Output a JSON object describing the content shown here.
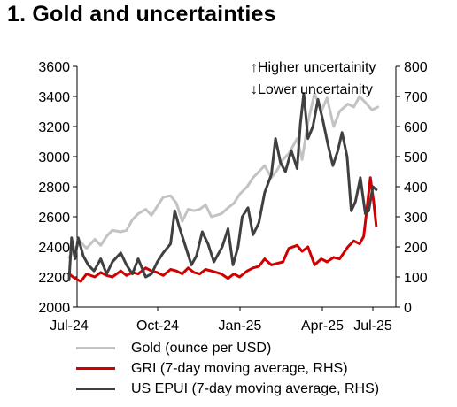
{
  "title": "1. Gold and uncertainties",
  "colors": {
    "gold": "#c3c3c3",
    "gri": "#d00000",
    "epui": "#404040"
  },
  "legend": [
    {
      "key": "gold",
      "label": "Gold (ounce per USD)"
    },
    {
      "key": "gri",
      "label": "GRI (7-day moving average, RHS)"
    },
    {
      "key": "epui",
      "label": "US EPUI (7-day moving average, RHS)"
    }
  ],
  "chart_data": {
    "type": "line",
    "annotations": [
      "↑Higher uncertainity",
      "↓Lower uncertainity"
    ],
    "x_ticks": [
      "Jul-24",
      "Oct-24",
      "Jan-25",
      "Apr-25",
      "Jul-25"
    ],
    "ylim_left": [
      2000,
      3600
    ],
    "yticks_left": [
      2000,
      2200,
      2400,
      2600,
      2800,
      3000,
      3200,
      3400,
      3600
    ],
    "ylim_right": [
      0,
      800
    ],
    "yticks_right": [
      0,
      100,
      200,
      300,
      400,
      500,
      600,
      700,
      800
    ],
    "grid": false,
    "legend_position": "bottom",
    "series": [
      {
        "name": "Gold (ounce per USD)",
        "key": "gold",
        "axis": "left",
        "points": [
          [
            "2024-07-01",
            2330
          ],
          [
            "2024-07-08",
            2390
          ],
          [
            "2024-07-15",
            2430
          ],
          [
            "2024-07-22",
            2390
          ],
          [
            "2024-08-01",
            2450
          ],
          [
            "2024-08-08",
            2410
          ],
          [
            "2024-08-15",
            2470
          ],
          [
            "2024-08-22",
            2510
          ],
          [
            "2024-09-01",
            2500
          ],
          [
            "2024-09-08",
            2510
          ],
          [
            "2024-09-15",
            2580
          ],
          [
            "2024-09-22",
            2620
          ],
          [
            "2024-10-01",
            2650
          ],
          [
            "2024-10-08",
            2610
          ],
          [
            "2024-10-15",
            2670
          ],
          [
            "2024-10-22",
            2730
          ],
          [
            "2024-10-31",
            2740
          ],
          [
            "2024-11-07",
            2690
          ],
          [
            "2024-11-14",
            2570
          ],
          [
            "2024-11-21",
            2650
          ],
          [
            "2024-11-28",
            2640
          ],
          [
            "2024-12-05",
            2650
          ],
          [
            "2024-12-12",
            2680
          ],
          [
            "2024-12-19",
            2600
          ],
          [
            "2024-12-31",
            2620
          ],
          [
            "2025-01-08",
            2660
          ],
          [
            "2025-01-15",
            2690
          ],
          [
            "2025-01-22",
            2750
          ],
          [
            "2025-01-31",
            2800
          ],
          [
            "2025-02-07",
            2860
          ],
          [
            "2025-02-14",
            2900
          ],
          [
            "2025-02-21",
            2940
          ],
          [
            "2025-03-01",
            2860
          ],
          [
            "2025-03-08",
            2910
          ],
          [
            "2025-03-15",
            2980
          ],
          [
            "2025-03-22",
            3020
          ],
          [
            "2025-04-01",
            3120
          ],
          [
            "2025-04-07",
            2980
          ],
          [
            "2025-04-14",
            3230
          ],
          [
            "2025-04-22",
            3420
          ],
          [
            "2025-04-30",
            3300
          ],
          [
            "2025-05-07",
            3390
          ],
          [
            "2025-05-15",
            3200
          ],
          [
            "2025-05-22",
            3300
          ],
          [
            "2025-06-01",
            3350
          ],
          [
            "2025-06-08",
            3330
          ],
          [
            "2025-06-15",
            3400
          ],
          [
            "2025-06-22",
            3360
          ],
          [
            "2025-06-30",
            3310
          ],
          [
            "2025-07-07",
            3330
          ]
        ]
      },
      {
        "name": "GRI (7-day moving average, RHS)",
        "key": "gri",
        "axis": "right",
        "points": [
          [
            "2024-07-01",
            110
          ],
          [
            "2024-07-08",
            95
          ],
          [
            "2024-07-15",
            85
          ],
          [
            "2024-07-22",
            110
          ],
          [
            "2024-08-01",
            100
          ],
          [
            "2024-08-08",
            115
          ],
          [
            "2024-08-15",
            105
          ],
          [
            "2024-08-22",
            100
          ],
          [
            "2024-09-01",
            120
          ],
          [
            "2024-09-08",
            105
          ],
          [
            "2024-09-15",
            115
          ],
          [
            "2024-09-22",
            110
          ],
          [
            "2024-10-01",
            130
          ],
          [
            "2024-10-08",
            120
          ],
          [
            "2024-10-15",
            115
          ],
          [
            "2024-10-22",
            105
          ],
          [
            "2024-10-31",
            125
          ],
          [
            "2024-11-07",
            120
          ],
          [
            "2024-11-14",
            110
          ],
          [
            "2024-11-21",
            130
          ],
          [
            "2024-11-28",
            115
          ],
          [
            "2024-12-05",
            110
          ],
          [
            "2024-12-12",
            125
          ],
          [
            "2024-12-19",
            120
          ],
          [
            "2024-12-31",
            110
          ],
          [
            "2025-01-08",
            95
          ],
          [
            "2025-01-15",
            110
          ],
          [
            "2025-01-22",
            100
          ],
          [
            "2025-01-31",
            120
          ],
          [
            "2025-02-07",
            130
          ],
          [
            "2025-02-14",
            135
          ],
          [
            "2025-02-21",
            160
          ],
          [
            "2025-03-01",
            140
          ],
          [
            "2025-03-08",
            145
          ],
          [
            "2025-03-15",
            150
          ],
          [
            "2025-03-22",
            195
          ],
          [
            "2025-04-01",
            205
          ],
          [
            "2025-04-07",
            185
          ],
          [
            "2025-04-14",
            200
          ],
          [
            "2025-04-22",
            140
          ],
          [
            "2025-04-30",
            160
          ],
          [
            "2025-05-07",
            150
          ],
          [
            "2025-05-15",
            165
          ],
          [
            "2025-05-22",
            160
          ],
          [
            "2025-06-01",
            200
          ],
          [
            "2025-06-08",
            220
          ],
          [
            "2025-06-15",
            210
          ],
          [
            "2025-06-20",
            235
          ],
          [
            "2025-06-24",
            330
          ],
          [
            "2025-06-28",
            430
          ],
          [
            "2025-07-02",
            350
          ],
          [
            "2025-07-05",
            270
          ]
        ]
      },
      {
        "name": "US EPUI (7-day moving average, RHS)",
        "key": "epui",
        "axis": "right",
        "points": [
          [
            "2024-07-01",
            90
          ],
          [
            "2024-07-04",
            230
          ],
          [
            "2024-07-08",
            160
          ],
          [
            "2024-07-12",
            230
          ],
          [
            "2024-07-18",
            170
          ],
          [
            "2024-07-24",
            140
          ],
          [
            "2024-07-31",
            120
          ],
          [
            "2024-08-08",
            160
          ],
          [
            "2024-08-15",
            110
          ],
          [
            "2024-08-22",
            150
          ],
          [
            "2024-09-01",
            180
          ],
          [
            "2024-09-08",
            140
          ],
          [
            "2024-09-15",
            110
          ],
          [
            "2024-09-22",
            160
          ],
          [
            "2024-10-01",
            100
          ],
          [
            "2024-10-08",
            110
          ],
          [
            "2024-10-15",
            150
          ],
          [
            "2024-10-22",
            180
          ],
          [
            "2024-10-31",
            210
          ],
          [
            "2024-11-05",
            320
          ],
          [
            "2024-11-10",
            270
          ],
          [
            "2024-11-18",
            200
          ],
          [
            "2024-11-25",
            140
          ],
          [
            "2024-12-01",
            170
          ],
          [
            "2024-12-08",
            250
          ],
          [
            "2024-12-15",
            210
          ],
          [
            "2024-12-22",
            150
          ],
          [
            "2025-01-01",
            200
          ],
          [
            "2025-01-08",
            260
          ],
          [
            "2025-01-14",
            140
          ],
          [
            "2025-01-20",
            200
          ],
          [
            "2025-01-25",
            300
          ],
          [
            "2025-02-01",
            330
          ],
          [
            "2025-02-07",
            240
          ],
          [
            "2025-02-14",
            280
          ],
          [
            "2025-02-21",
            380
          ],
          [
            "2025-03-01",
            440
          ],
          [
            "2025-03-06",
            560
          ],
          [
            "2025-03-12",
            480
          ],
          [
            "2025-03-18",
            450
          ],
          [
            "2025-03-25",
            520
          ],
          [
            "2025-04-01",
            460
          ],
          [
            "2025-04-05",
            610
          ],
          [
            "2025-04-09",
            710
          ],
          [
            "2025-04-14",
            560
          ],
          [
            "2025-04-20",
            600
          ],
          [
            "2025-04-26",
            690
          ],
          [
            "2025-05-02",
            620
          ],
          [
            "2025-05-08",
            540
          ],
          [
            "2025-05-14",
            470
          ],
          [
            "2025-05-20",
            520
          ],
          [
            "2025-05-25",
            580
          ],
          [
            "2025-05-31",
            500
          ],
          [
            "2025-06-05",
            320
          ],
          [
            "2025-06-10",
            350
          ],
          [
            "2025-06-16",
            430
          ],
          [
            "2025-06-22",
            310
          ],
          [
            "2025-06-26",
            320
          ],
          [
            "2025-07-01",
            400
          ],
          [
            "2025-07-05",
            390
          ]
        ]
      }
    ]
  }
}
